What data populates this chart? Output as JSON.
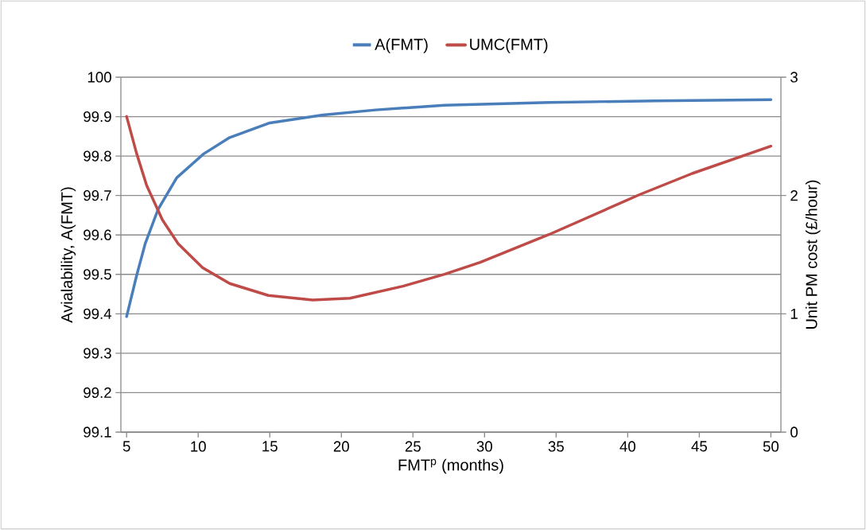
{
  "chart_data": {
    "type": "line",
    "xlabel": "FMT$^{p}$ (months)",
    "ylabel": "Avialability, A(FMT)",
    "y2label": "Unit PM cost (£/hour)",
    "xlim": [
      4.6,
      50.7
    ],
    "xticks": [
      5,
      10,
      15,
      20,
      25,
      30,
      35,
      40,
      45,
      50
    ],
    "ylim": [
      99.1,
      100
    ],
    "yticks": [
      99.1,
      99.2,
      99.3,
      99.4,
      99.5,
      99.6,
      99.7,
      99.8,
      99.9,
      100
    ],
    "y2lim": [
      0,
      3
    ],
    "y2ticks": [
      0,
      1,
      2,
      3
    ],
    "grid": "y",
    "legend": "top",
    "marker": "none",
    "line_style": "solid",
    "series": [
      {
        "name": "A(FMT)",
        "color": "#4a7ebb",
        "x": [
          5,
          5.7,
          6.3,
          7.2,
          8.5,
          10.4,
          12.2,
          15,
          18.7,
          22.4,
          27.2,
          34.5,
          41.9,
          50
        ],
        "values": [
          99.393,
          99.497,
          99.578,
          99.665,
          99.745,
          99.806,
          99.847,
          99.884,
          99.904,
          99.917,
          99.929,
          99.936,
          99.94,
          99.943
        ]
      },
      {
        "name": "UMC(FMT)",
        "color": "#be4b48",
        "axis": "y2",
        "x": [
          5,
          5.7,
          6.4,
          7.5,
          8.6,
          10.3,
          12.2,
          14.9,
          18,
          20.6,
          24.3,
          27.2,
          29.7,
          34.5,
          40.8,
          44.5,
          50
        ],
        "values": [
          2.668,
          2.355,
          2.085,
          1.794,
          1.592,
          1.39,
          1.256,
          1.155,
          1.117,
          1.132,
          1.233,
          1.334,
          1.435,
          1.67,
          2.006,
          2.186,
          2.417
        ]
      }
    ]
  }
}
